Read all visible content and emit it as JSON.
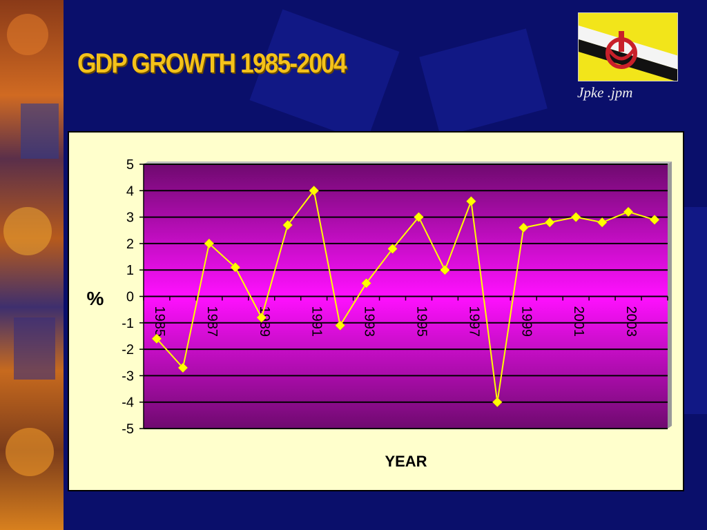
{
  "slide": {
    "title": "GDP GROWTH 1985-2004",
    "caption": "Jpke .jpm"
  },
  "flag": {
    "icon": "brunei-flag-icon"
  },
  "colors": {
    "background": "#0a0f6b",
    "title": "#f4c21a",
    "chart_panel": "#ffffcc",
    "plot_top": "#7a0a7a",
    "plot_mid": "#ff00ff",
    "series": "#ffff00"
  },
  "chart_data": {
    "type": "line",
    "xlabel": "YEAR",
    "ylabel": "%",
    "ylim": [
      -5,
      5
    ],
    "y_ticks": [
      5,
      4,
      3,
      2,
      1,
      0,
      -1,
      -2,
      -3,
      -4,
      -5
    ],
    "x_tick_labels": [
      "1985",
      "1987",
      "1989",
      "1991",
      "1993",
      "1995",
      "1997",
      "1999",
      "2001",
      "2003"
    ],
    "grid": true,
    "legend": "none",
    "series": [
      {
        "x": [
          1985,
          1986,
          1987,
          1988,
          1989,
          1990,
          1991,
          1992,
          1993,
          1994,
          1995,
          1996,
          1997,
          1998,
          1999,
          2000,
          2001,
          2002,
          2003,
          2004
        ],
        "values": [
          -1.6,
          -2.7,
          2.0,
          1.1,
          -0.8,
          2.7,
          4.0,
          -1.1,
          0.5,
          1.8,
          3.0,
          1.0,
          3.6,
          -4.0,
          2.6,
          2.8,
          3.0,
          2.8,
          3.2,
          2.9
        ]
      }
    ]
  }
}
